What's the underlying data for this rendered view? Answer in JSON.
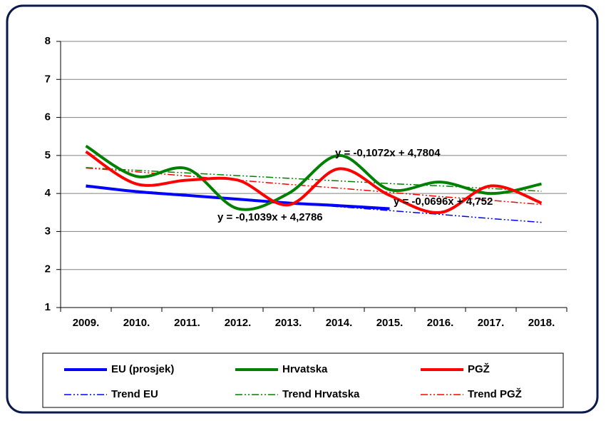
{
  "chart_data": {
    "type": "line",
    "categories": [
      "2009.",
      "2010.",
      "2011.",
      "2012.",
      "2013.",
      "2014.",
      "2015.",
      "2016.",
      "2017.",
      "2018."
    ],
    "series": [
      {
        "name": "EU (prosjek)",
        "color": "#0000ff",
        "style": "solid",
        "values": [
          4.2,
          4.05,
          3.95,
          3.85,
          3.75,
          3.68,
          3.6,
          null,
          null,
          null
        ]
      },
      {
        "name": "Hrvatska",
        "color": "#008000",
        "style": "solid",
        "values": [
          5.25,
          4.45,
          4.65,
          3.6,
          4.0,
          5.0,
          4.1,
          4.3,
          4.0,
          4.25
        ]
      },
      {
        "name": "PGŽ",
        "color": "#ff0000",
        "style": "solid",
        "values": [
          5.1,
          4.25,
          4.35,
          4.35,
          3.7,
          4.65,
          3.95,
          3.5,
          4.2,
          3.75
        ]
      },
      {
        "name": "Trend EU",
        "color": "#0000ff",
        "style": "dashdot",
        "values": [
          4.17,
          4.07,
          3.97,
          3.86,
          3.76,
          3.65,
          3.55,
          3.45,
          3.34,
          3.24
        ]
      },
      {
        "name": "Trend Hrvatska",
        "color": "#008000",
        "style": "dashdot",
        "values": [
          4.68,
          4.61,
          4.54,
          4.47,
          4.4,
          4.33,
          4.26,
          4.2,
          4.13,
          4.06
        ]
      },
      {
        "name": "Trend PGŽ",
        "color": "#ff0000",
        "style": "dashdot",
        "values": [
          4.67,
          4.57,
          4.46,
          4.35,
          4.24,
          4.14,
          4.03,
          3.92,
          3.82,
          3.71
        ]
      }
    ],
    "annotations": [
      {
        "text": "y = -0,1039x + 4,2786",
        "color": "#0000ff"
      },
      {
        "text": "y = -0,1072x + 4,7804",
        "color": "#ff0000"
      },
      {
        "text": "y = -0,0696x + 4,752",
        "color": "#008000"
      }
    ],
    "ylim": [
      1,
      8
    ],
    "yticks": [
      1,
      2,
      3,
      4,
      5,
      6,
      7,
      8
    ],
    "grid": true,
    "legend": "bottom"
  }
}
